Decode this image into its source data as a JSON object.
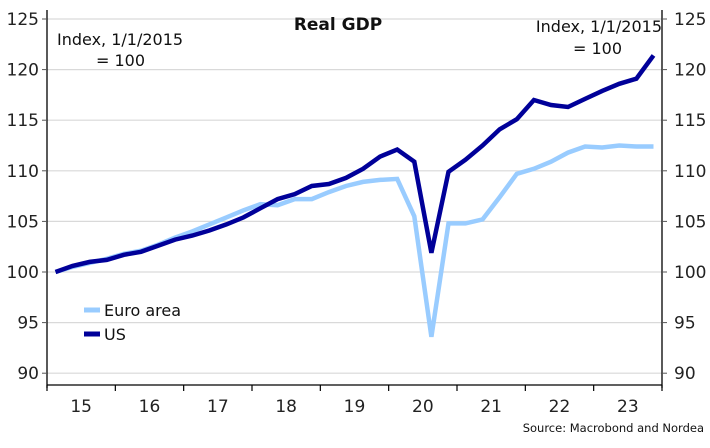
{
  "chart_data": {
    "type": "line",
    "title": "Real GDP",
    "annotation_left": [
      "Index, 1/1/2015",
      "= 100"
    ],
    "annotation_right": [
      "Index, 1/1/2015",
      "= 100"
    ],
    "source": "Source: Macrobond and Nordea",
    "xlabel": "",
    "ylabel": "",
    "ylim": [
      89,
      126
    ],
    "yticks": [
      90,
      95,
      100,
      105,
      110,
      115,
      120,
      125
    ],
    "ytick_labels": [
      "90",
      "95",
      "100",
      "105",
      "110",
      "115",
      "120",
      "125"
    ],
    "x_categories": [
      "15",
      "16",
      "17",
      "18",
      "19",
      "20",
      "21",
      "22",
      "23"
    ],
    "x_frequency": "quarterly",
    "x_start": "2015Q1",
    "x_end": "2023Q4",
    "grid": true,
    "legend_position": "bottom-left",
    "series": [
      {
        "name": "Euro area",
        "color": "#99CCFF",
        "values": [
          100.0,
          100.5,
          100.9,
          101.3,
          101.8,
          102.1,
          102.7,
          103.4,
          104.0,
          104.7,
          105.4,
          106.1,
          106.7,
          106.6,
          107.2,
          107.2,
          107.9,
          108.5,
          108.9,
          109.1,
          109.2,
          105.5,
          93.6,
          104.8,
          104.8,
          105.2,
          107.4,
          109.7,
          110.2,
          110.9,
          111.8,
          112.4,
          112.3,
          112.5,
          112.4,
          112.4
        ]
      },
      {
        "name": "US",
        "color": "#000099",
        "values": [
          100.0,
          100.6,
          101.0,
          101.2,
          101.7,
          102.0,
          102.6,
          103.2,
          103.6,
          104.1,
          104.7,
          105.4,
          106.3,
          107.2,
          107.7,
          108.5,
          108.7,
          109.3,
          110.2,
          111.4,
          112.1,
          110.9,
          101.9,
          109.9,
          111.1,
          112.5,
          114.1,
          115.1,
          117.0,
          116.5,
          116.3,
          117.1,
          117.9,
          118.6,
          119.1,
          121.4
        ]
      }
    ]
  }
}
